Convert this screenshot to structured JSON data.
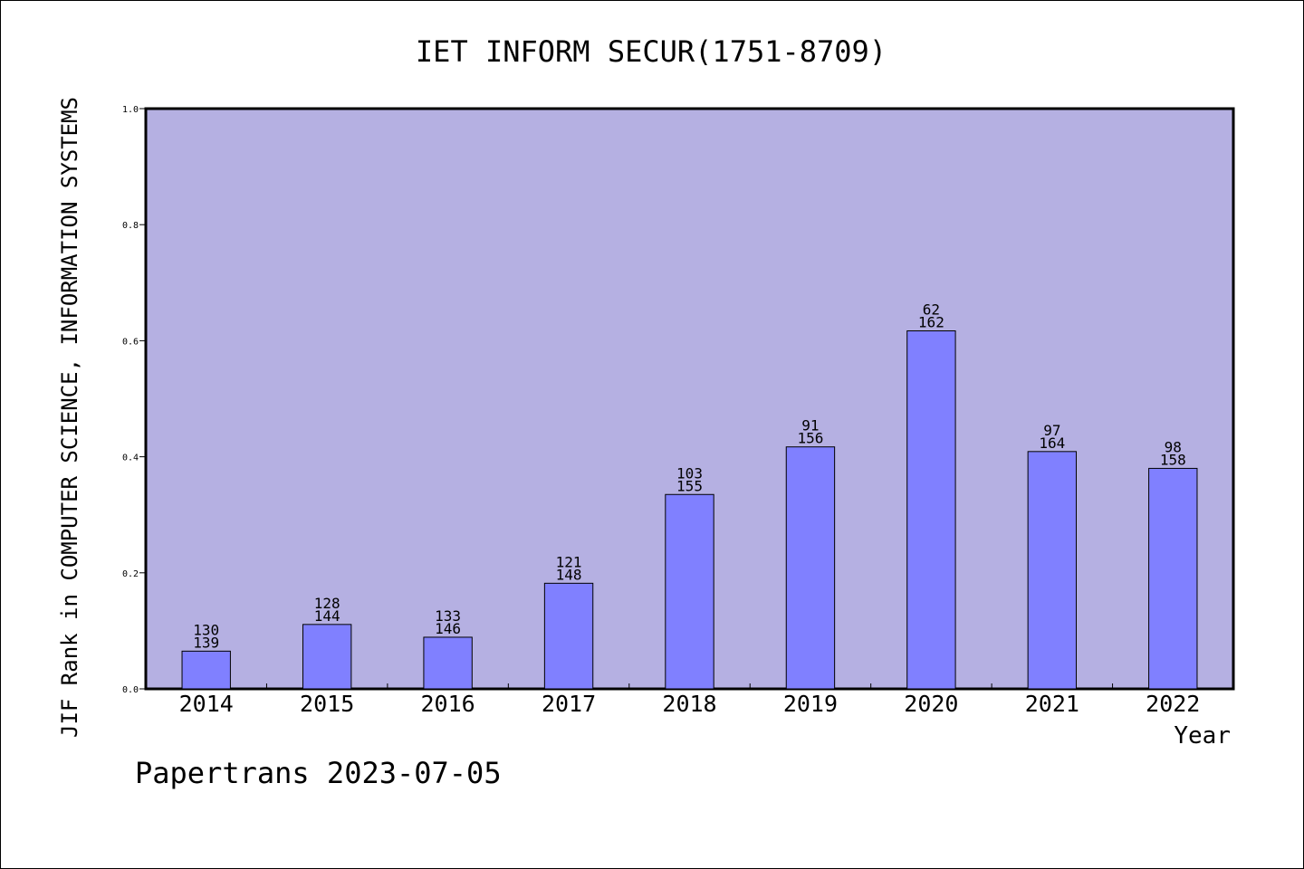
{
  "chart_data": {
    "type": "bar",
    "title": "IET INFORM SECUR(1751-8709)",
    "xlabel": "Year",
    "ylabel": "JIF Rank in COMPUTER SCIENCE, INFORMATION SYSTEMS",
    "footer": "Papertrans 2023-07-05",
    "ylim": [
      0,
      1.0
    ],
    "yticks": [
      "0.0",
      "0.2",
      "0.4",
      "0.6",
      "0.8",
      "1.0"
    ],
    "grid": false,
    "categories": [
      "2014",
      "2015",
      "2016",
      "2017",
      "2018",
      "2019",
      "2020",
      "2021",
      "2022"
    ],
    "values": [
      0.065,
      0.111,
      0.089,
      0.182,
      0.335,
      0.417,
      0.617,
      0.409,
      0.38
    ],
    "rank": [
      130,
      128,
      133,
      121,
      103,
      91,
      62,
      97,
      98
    ],
    "total": [
      139,
      144,
      146,
      148,
      155,
      156,
      162,
      164,
      158
    ],
    "colors": {
      "plot_background": "#b5b0e2",
      "bar_fill": "#8080ff",
      "bar_stroke": "#000000"
    }
  }
}
